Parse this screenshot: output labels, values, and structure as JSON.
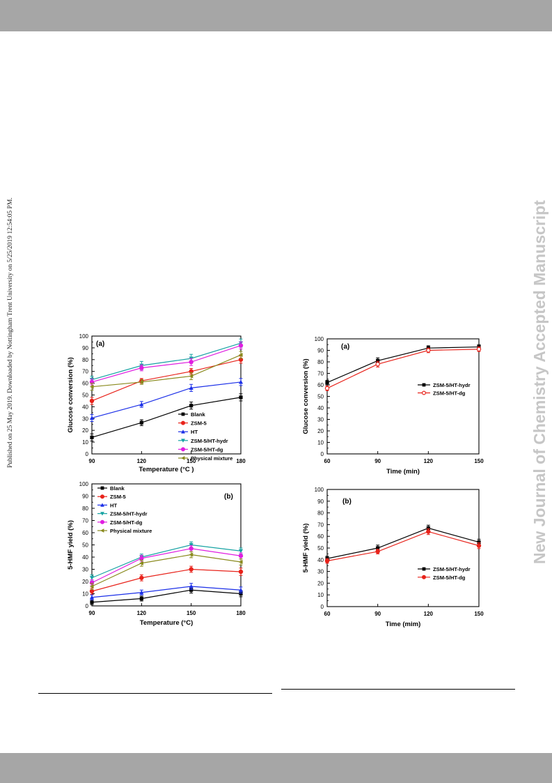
{
  "side_left_text": "Published on 25 May 2019. Downloaded by Nottingham Trent University on 5/25/2019 12:54:05 PM.",
  "side_right_text": "New Journal of Chemistry Accepted Manuscript",
  "colors": {
    "band": "#a6a6a6",
    "watermark": "#c6c6c6"
  },
  "chart_data": [
    {
      "id": "temp-a",
      "type": "line",
      "panel_label": "(a)",
      "xlabel": "Temperature (°C )",
      "ylabel": "Glucose conversion (%)",
      "x": [
        90,
        120,
        150,
        180
      ],
      "xlim": [
        90,
        180
      ],
      "ylim": [
        0,
        100
      ],
      "yticks": [
        0,
        10,
        20,
        30,
        40,
        50,
        60,
        70,
        80,
        90,
        100
      ],
      "legend_position": "lower-right",
      "series": [
        {
          "name": "Blank",
          "color": "#000000",
          "marker": "square",
          "values": [
            14,
            26.5,
            41,
            48
          ],
          "errors": [
            3,
            2.5,
            3,
            3
          ]
        },
        {
          "name": "ZSM-5",
          "color": "#e8231b",
          "marker": "circle",
          "values": [
            45,
            62,
            70,
            80
          ],
          "errors": [
            3,
            2,
            2.5,
            3
          ]
        },
        {
          "name": "HT",
          "color": "#1b2fe8",
          "marker": "triangle-up",
          "values": [
            30.5,
            42,
            56,
            61
          ],
          "errors": [
            3,
            2.5,
            3,
            3
          ]
        },
        {
          "name": "ZSM-5/HT-hydr",
          "color": "#16a3a3",
          "marker": "triangle-down",
          "values": [
            63,
            75,
            81,
            94
          ],
          "errors": [
            3,
            3.5,
            3.5,
            3.5
          ]
        },
        {
          "name": "ZSM-5/HT-dg",
          "color": "#e01ee0",
          "marker": "circle",
          "values": [
            61,
            73,
            78,
            92
          ],
          "errors": [
            2.5,
            2.5,
            3,
            3
          ]
        },
        {
          "name": "Physical mixture",
          "color": "#8a8a1e",
          "marker": "triangle-left",
          "values": [
            57,
            61,
            66,
            84
          ],
          "errors": [
            3,
            2,
            3,
            3
          ]
        }
      ]
    },
    {
      "id": "temp-b",
      "type": "line",
      "panel_label": "(b)",
      "xlabel": "Temperature (°C)",
      "ylabel": "5-HMF yield (%)",
      "x": [
        90,
        120,
        150,
        180
      ],
      "xlim": [
        90,
        180
      ],
      "ylim": [
        0,
        100
      ],
      "yticks": [
        0,
        10,
        20,
        30,
        40,
        50,
        60,
        70,
        80,
        90,
        100
      ],
      "legend_position": "upper-left",
      "series": [
        {
          "name": "Blank",
          "color": "#000000",
          "marker": "square",
          "values": [
            3,
            6,
            13,
            10
          ],
          "errors": [
            2,
            2,
            2.5,
            2.5
          ]
        },
        {
          "name": "ZSM-5",
          "color": "#e8231b",
          "marker": "circle",
          "values": [
            12,
            23,
            30,
            28
          ],
          "errors": [
            2.5,
            2.5,
            2.5,
            3
          ]
        },
        {
          "name": "HT",
          "color": "#1b2fe8",
          "marker": "triangle-up",
          "values": [
            7,
            11,
            16,
            13
          ],
          "errors": [
            2,
            2,
            2.5,
            2.5
          ]
        },
        {
          "name": "ZSM-5/HT-hydr",
          "color": "#16a3a3",
          "marker": "triangle-down",
          "values": [
            23,
            40,
            50,
            45
          ],
          "errors": [
            2.5,
            2.5,
            2.5,
            2.5
          ]
        },
        {
          "name": "ZSM-5/HT-dg",
          "color": "#e01ee0",
          "marker": "circle",
          "values": [
            19,
            39,
            47,
            41
          ],
          "errors": [
            2.5,
            2.5,
            2.5,
            2.5
          ]
        },
        {
          "name": "Physical mixture",
          "color": "#8a8a1e",
          "marker": "triangle-left",
          "values": [
            16,
            35,
            42,
            36
          ],
          "errors": [
            2.5,
            2.5,
            2.5,
            2.5
          ]
        }
      ]
    },
    {
      "id": "time-a",
      "type": "line",
      "panel_label": "(a)",
      "xlabel": "Time (min)",
      "ylabel": "Glucose conversion (%)",
      "x": [
        60,
        90,
        120,
        150
      ],
      "xlim": [
        60,
        150
      ],
      "ylim": [
        0,
        100
      ],
      "yticks": [
        0,
        10,
        20,
        30,
        40,
        50,
        60,
        70,
        80,
        90,
        100
      ],
      "legend_position": "middle-right",
      "series": [
        {
          "name": "ZSM-5/HT-hydr",
          "color": "#000000",
          "marker": "square",
          "values": [
            62,
            81,
            92,
            93
          ],
          "errors": [
            2,
            2.5,
            2,
            2
          ]
        },
        {
          "name": "ZSM-5/HT-dg",
          "color": "#e8231b",
          "marker": "circle-open",
          "values": [
            57,
            78,
            90,
            91
          ],
          "errors": [
            2,
            2.5,
            2,
            2
          ]
        }
      ]
    },
    {
      "id": "time-b",
      "type": "line",
      "panel_label": "(b)",
      "xlabel": "Time (mim)",
      "ylabel": "5-HMF yield (%)",
      "x": [
        60,
        90,
        120,
        150
      ],
      "xlim": [
        60,
        150
      ],
      "ylim": [
        0,
        100
      ],
      "yticks": [
        0,
        10,
        20,
        30,
        40,
        50,
        60,
        70,
        80,
        90,
        100
      ],
      "legend_position": "lower-right",
      "series": [
        {
          "name": "ZSM-5/HT-hydr",
          "color": "#000000",
          "marker": "square",
          "values": [
            41,
            50,
            67,
            55
          ],
          "errors": [
            2,
            2.5,
            2.5,
            2.5
          ]
        },
        {
          "name": "ZSM-5/HT-dg",
          "color": "#e8231b",
          "marker": "circle",
          "values": [
            39,
            47,
            64,
            52
          ],
          "errors": [
            2,
            2,
            2.5,
            2.5
          ]
        }
      ]
    }
  ]
}
